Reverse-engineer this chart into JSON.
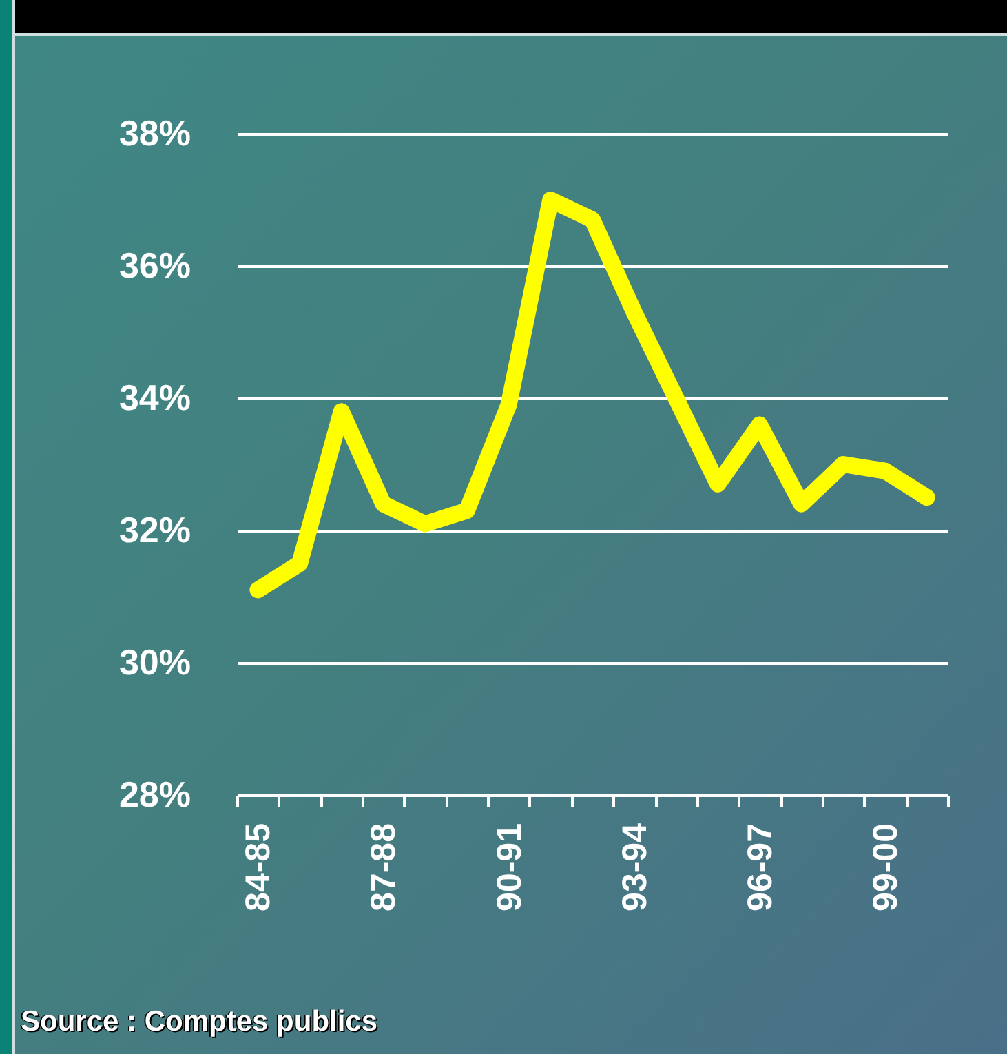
{
  "chart_data": {
    "type": "line",
    "categories": [
      "84-85",
      null,
      null,
      "87-88",
      null,
      null,
      "90-91",
      null,
      null,
      "93-94",
      null,
      null,
      "96-97",
      null,
      null,
      "99-00",
      null
    ],
    "values": [
      31.1,
      31.5,
      33.8,
      32.4,
      32.1,
      32.3,
      33.9,
      37.0,
      36.7,
      35.3,
      34.0,
      32.7,
      33.6,
      32.4,
      33.0,
      32.9,
      32.5
    ],
    "color": "#ffff00",
    "ylim": [
      28,
      38
    ],
    "yticks": [
      {
        "value": 28,
        "label": "28%"
      },
      {
        "value": 30,
        "label": "30%"
      },
      {
        "value": 32,
        "label": "32%"
      },
      {
        "value": 34,
        "label": "34%"
      },
      {
        "value": 36,
        "label": "36%"
      },
      {
        "value": 38,
        "label": "38%"
      }
    ],
    "grid": "y",
    "annotations": [
      "Source : Comptes publics"
    ]
  }
}
